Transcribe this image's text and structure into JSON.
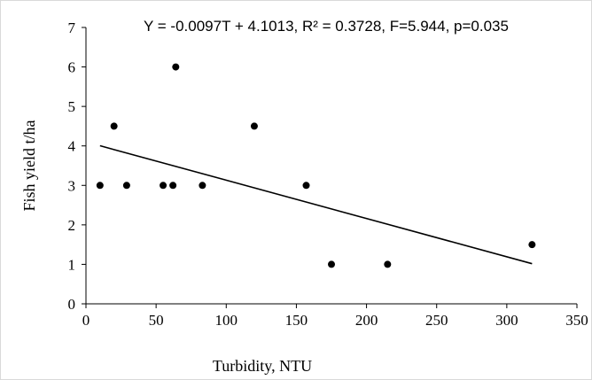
{
  "chart_data": {
    "type": "scatter",
    "title": "",
    "annotation": "Y = -0.0097T + 4.1013, R² = 0.3728, F=5.944, p=0.035",
    "xlabel": "Turbidity, NTU",
    "ylabel": "Fish yield t/ha",
    "xlim": [
      0,
      350
    ],
    "ylim": [
      0,
      7
    ],
    "x_ticks": [
      0,
      50,
      100,
      150,
      200,
      250,
      300,
      350
    ],
    "y_ticks": [
      0,
      1,
      2,
      3,
      4,
      5,
      6,
      7
    ],
    "grid": false,
    "legend": "none",
    "points": [
      {
        "x": 10,
        "y": 3
      },
      {
        "x": 20,
        "y": 4.5
      },
      {
        "x": 29,
        "y": 3
      },
      {
        "x": 55,
        "y": 3
      },
      {
        "x": 62,
        "y": 3
      },
      {
        "x": 64,
        "y": 6
      },
      {
        "x": 83,
        "y": 3
      },
      {
        "x": 120,
        "y": 4.5
      },
      {
        "x": 157,
        "y": 3
      },
      {
        "x": 175,
        "y": 1
      },
      {
        "x": 215,
        "y": 1
      },
      {
        "x": 318,
        "y": 1.5
      }
    ],
    "trendline": {
      "slope": -0.0097,
      "intercept": 4.1013,
      "x_start": 10,
      "x_end": 318
    },
    "colors": {
      "points": "#000000",
      "trendline": "#000000",
      "axes": "#000000"
    }
  }
}
